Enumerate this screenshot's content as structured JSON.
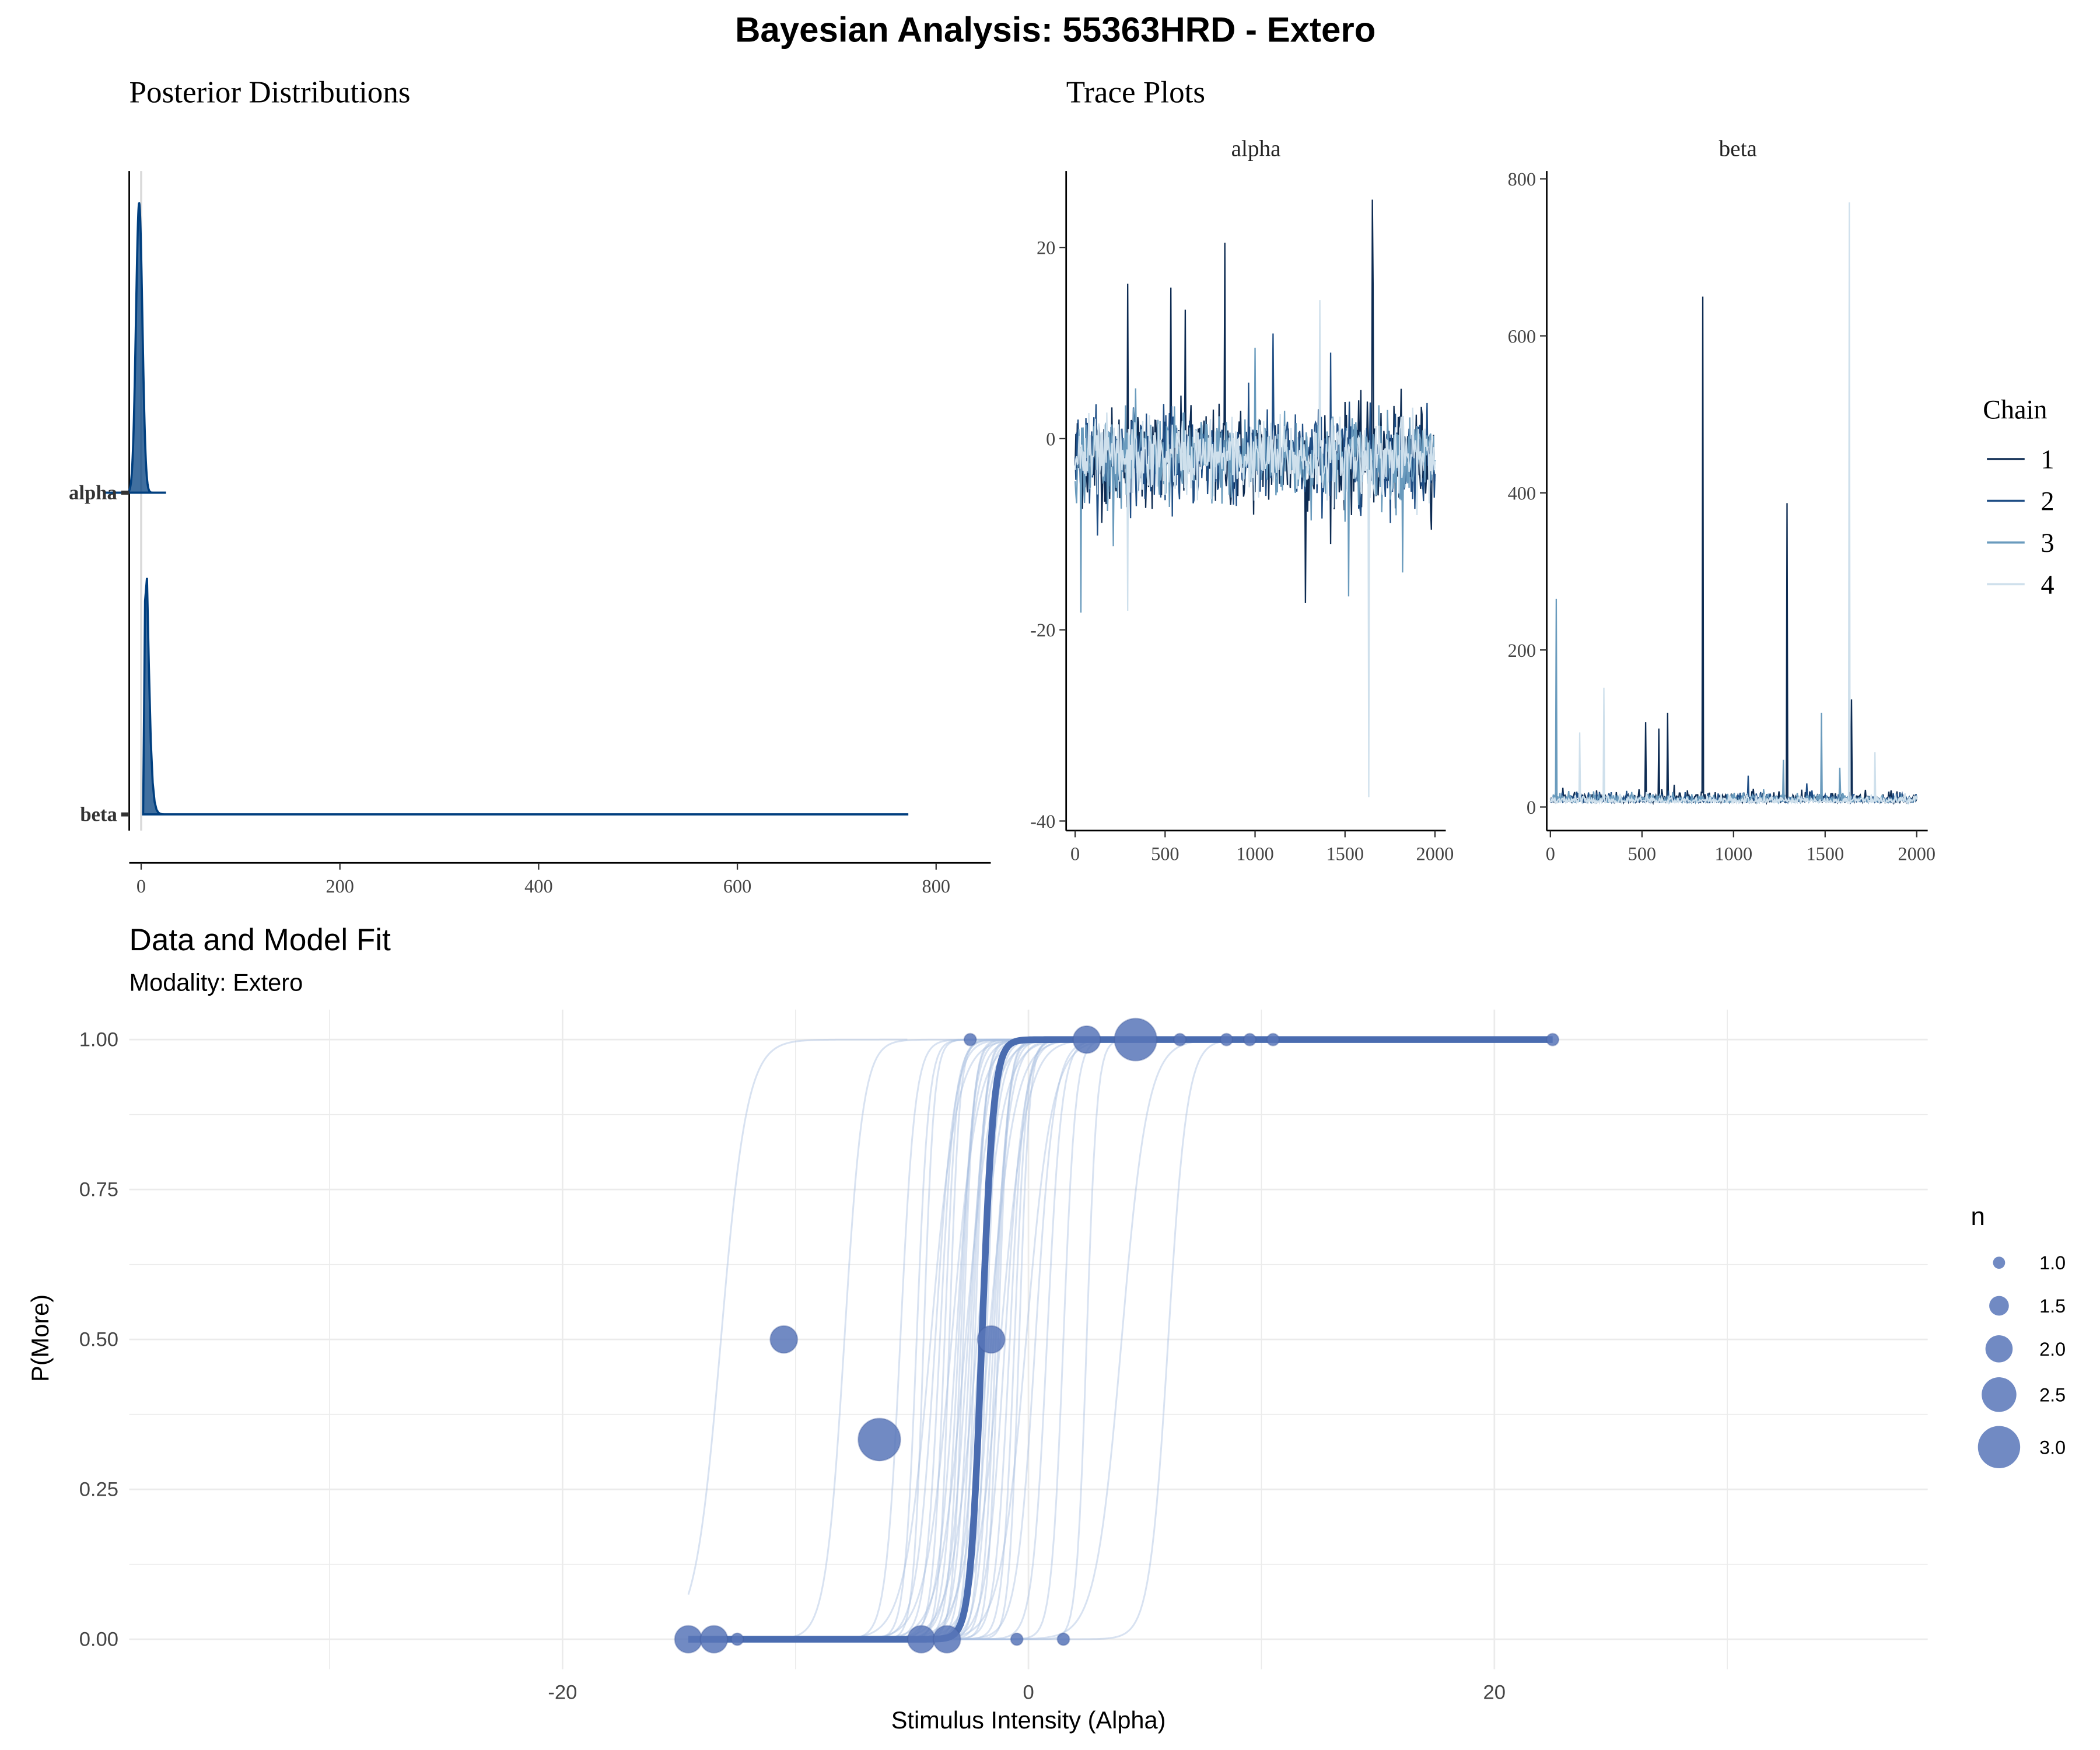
{
  "figure": {
    "title": "Bayesian Analysis: 55363HRD - Extero"
  },
  "colors": {
    "dark_blue": "#003f7f",
    "chain1": "#0d2b52",
    "chain2": "#1f4e85",
    "chain3": "#6a9bbd",
    "chain4": "#cfe0ec",
    "fit_point": "#5876b8",
    "fit_line": "#4a6cb0",
    "ref_line": "#d9d9d9"
  },
  "chart_data": [
    {
      "id": "posterior",
      "type": "area",
      "title": "Posterior Distributions",
      "xlabel": "",
      "ylabel": "",
      "xlim": [
        -12,
        855
      ],
      "x_ticks": [
        "0",
        "200",
        "400",
        "600",
        "800"
      ],
      "x_tick_values": [
        0,
        200,
        400,
        600,
        800
      ],
      "categories": [
        "alpha",
        "beta"
      ],
      "reference_line_x": 0,
      "densities": [
        {
          "name": "alpha",
          "range": [
            -38,
            25
          ],
          "mode": -2,
          "sd": 3.2
        },
        {
          "name": "beta",
          "range": [
            2,
            772
          ],
          "mode": 5,
          "scale": 3.5
        }
      ]
    },
    {
      "id": "trace_alpha",
      "type": "line",
      "title": "Trace Plots",
      "panel_label": "alpha",
      "xlim": [
        -50,
        2060
      ],
      "ylim": [
        -41,
        28
      ],
      "x_ticks": [
        "0",
        "500",
        "1000",
        "1500",
        "2000"
      ],
      "x_tick_values": [
        0,
        500,
        1000,
        1500,
        2000
      ],
      "y_ticks": [
        "20",
        "0",
        "-20",
        "-40"
      ],
      "y_tick_values": [
        20,
        0,
        -20,
        -40
      ],
      "series": [
        {
          "name": "1",
          "center": -2,
          "spread": 2.6,
          "spikes": [
            [
              290,
              16.2
            ],
            [
              530,
              15.8
            ],
            [
              610,
              13.5
            ],
            [
              830,
              20.5
            ],
            [
              1280,
              -17.2
            ],
            [
              1650,
              25
            ],
            [
              1655,
              16
            ]
          ]
        },
        {
          "name": "2",
          "center": -2,
          "spread": 2.4,
          "spikes": [
            [
              1100,
              11
            ],
            [
              1420,
              9
            ]
          ]
        },
        {
          "name": "3",
          "center": -2,
          "spread": 2.3,
          "spikes": [
            [
              30,
              -18.2
            ],
            [
              1520,
              -16.5
            ],
            [
              1820,
              -14
            ],
            [
              1000,
              9.5
            ]
          ]
        },
        {
          "name": "4",
          "center": -2,
          "spread": 2.0,
          "spikes": [
            [
              1630,
              -37.5
            ],
            [
              1360,
              14.5
            ],
            [
              290,
              -18
            ]
          ]
        }
      ]
    },
    {
      "id": "trace_beta",
      "type": "line",
      "panel_label": "beta",
      "xlim": [
        -20,
        2060
      ],
      "ylim": [
        -30,
        810
      ],
      "x_ticks": [
        "0",
        "500",
        "1000",
        "1500",
        "2000"
      ],
      "x_tick_values": [
        0,
        500,
        1000,
        1500,
        2000
      ],
      "y_ticks": [
        "800",
        "600",
        "400",
        "200",
        "0"
      ],
      "y_tick_values": [
        800,
        600,
        400,
        200,
        0
      ],
      "series": [
        {
          "name": "1",
          "center": 8,
          "spread": 6,
          "spikes": [
            [
              830,
              650
            ],
            [
              1290,
              387
            ],
            [
              1645,
              137
            ],
            [
              640,
              120
            ],
            [
              590,
              100
            ],
            [
              520,
              108
            ]
          ]
        },
        {
          "name": "2",
          "center": 8,
          "spread": 5,
          "spikes": [
            [
              1080,
              40
            ],
            [
              1400,
              30
            ]
          ]
        },
        {
          "name": "3",
          "center": 8,
          "spread": 5,
          "spikes": [
            [
              30,
              265
            ],
            [
              1480,
              120
            ],
            [
              1270,
              60
            ],
            [
              1580,
              50
            ]
          ]
        },
        {
          "name": "4",
          "center": 7,
          "spread": 4,
          "spikes": [
            [
              1630,
              770
            ],
            [
              290,
              152
            ],
            [
              160,
              95
            ],
            [
              1770,
              70
            ]
          ]
        }
      ]
    },
    {
      "id": "model_fit",
      "type": "scatter",
      "title": "Data and Model Fit",
      "subtitle": "Modality: Extero",
      "xlabel": "Stimulus Intensity (Alpha)",
      "ylabel": "P(More)",
      "xlim": [
        -38.6,
        38.6
      ],
      "ylim": [
        -0.05,
        1.05
      ],
      "x_ticks": [
        "-20",
        "0",
        "20"
      ],
      "x_tick_values": [
        -20,
        0,
        20
      ],
      "y_ticks": [
        "0.00",
        "0.25",
        "0.50",
        "0.75",
        "1.00"
      ],
      "y_tick_values": [
        0,
        0.25,
        0.5,
        0.75,
        1
      ],
      "points": [
        {
          "x": -14.6,
          "y": 0,
          "n": 2
        },
        {
          "x": -13.5,
          "y": 0,
          "n": 2
        },
        {
          "x": -12.5,
          "y": 0,
          "n": 1
        },
        {
          "x": -10.5,
          "y": 0.5,
          "n": 2
        },
        {
          "x": -6.4,
          "y": 0.333,
          "n": 3
        },
        {
          "x": -4.6,
          "y": 0,
          "n": 2
        },
        {
          "x": -3.5,
          "y": 0,
          "n": 2
        },
        {
          "x": -0.5,
          "y": 0,
          "n": 1
        },
        {
          "x": 1.5,
          "y": 0,
          "n": 1
        },
        {
          "x": -1.6,
          "y": 0.5,
          "n": 2
        },
        {
          "x": -2.5,
          "y": 1,
          "n": 1
        },
        {
          "x": 2.5,
          "y": 1,
          "n": 2
        },
        {
          "x": 4.6,
          "y": 1,
          "n": 3
        },
        {
          "x": 6.5,
          "y": 1,
          "n": 1
        },
        {
          "x": 8.5,
          "y": 1,
          "n": 1
        },
        {
          "x": 9.5,
          "y": 1,
          "n": 1
        },
        {
          "x": 10.5,
          "y": 1,
          "n": 1
        },
        {
          "x": 22.5,
          "y": 1,
          "n": 1
        }
      ],
      "fit_curve": {
        "alpha": -2.0,
        "beta": 0.25,
        "x_range": [
          -14.6,
          22.5
        ]
      },
      "posterior_sample_alphas": [
        -13.2,
        -7.9,
        -5.5,
        -4.8,
        -4.5,
        -4.2,
        -4.0,
        -3.8,
        -3.6,
        -3.4,
        -3.3,
        -3.1,
        -3.0,
        -2.9,
        -2.8,
        -2.7,
        -2.6,
        -2.5,
        -2.4,
        -2.3,
        -2.2,
        -2.1,
        -2.0,
        -1.9,
        -1.8,
        -1.7,
        -1.6,
        -1.5,
        -1.4,
        -1.3,
        -1.2,
        -1.0,
        -0.8,
        -0.6,
        -0.4,
        -0.1,
        0.3,
        0.8,
        1.5,
        2.5,
        4.0,
        6.0
      ]
    }
  ],
  "legends": {
    "chain": {
      "title": "Chain",
      "items": [
        "1",
        "2",
        "3",
        "4"
      ]
    },
    "size": {
      "title": "n",
      "items": [
        "1.0",
        "1.5",
        "2.0",
        "2.5",
        "3.0"
      ]
    }
  }
}
